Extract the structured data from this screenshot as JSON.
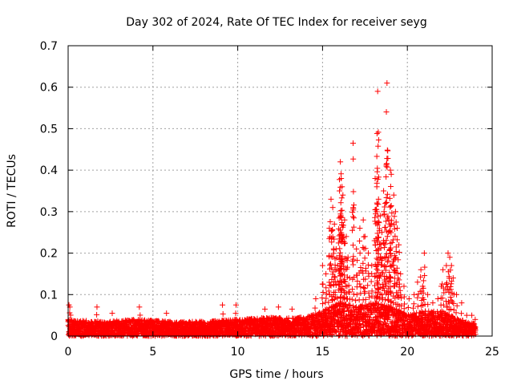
{
  "chart_data": {
    "type": "scatter",
    "title": "Day 302 of 2024, Rate Of TEC Index for receiver seyg",
    "xlabel": "GPS time / hours",
    "ylabel": "ROTI / TECUs",
    "xlim": [
      0,
      25
    ],
    "ylim": [
      0,
      0.7
    ],
    "xticks": [
      0,
      5,
      10,
      15,
      20,
      25
    ],
    "yticks": [
      0,
      0.1,
      0.2,
      0.3,
      0.4,
      0.5,
      0.6,
      0.7
    ],
    "grid": true,
    "marker": "+",
    "color": "#ff0000",
    "series": [
      {
        "name": "ROTI",
        "data_range_hours": [
          0,
          24
        ],
        "background_band": [
          [
            0.0,
            0.04
          ],
          [
            2.0,
            0.035
          ],
          [
            4.0,
            0.04
          ],
          [
            6.0,
            0.035
          ],
          [
            8.0,
            0.035
          ],
          [
            10.0,
            0.04
          ],
          [
            12.0,
            0.045
          ],
          [
            14.0,
            0.045
          ],
          [
            15.0,
            0.06
          ],
          [
            16.0,
            0.08
          ],
          [
            17.0,
            0.07
          ],
          [
            18.0,
            0.08
          ],
          [
            19.0,
            0.07
          ],
          [
            20.0,
            0.05
          ],
          [
            21.0,
            0.06
          ],
          [
            22.0,
            0.06
          ],
          [
            23.0,
            0.04
          ],
          [
            24.0,
            0.03
          ]
        ],
        "points": [
          [
            0.05,
            0.075
          ],
          [
            0.1,
            0.07
          ],
          [
            1.7,
            0.07
          ],
          [
            2.6,
            0.055
          ],
          [
            4.2,
            0.07
          ],
          [
            5.8,
            0.055
          ],
          [
            9.1,
            0.075
          ],
          [
            9.9,
            0.075
          ],
          [
            11.6,
            0.065
          ],
          [
            12.4,
            0.07
          ],
          [
            13.2,
            0.065
          ],
          [
            14.6,
            0.09
          ],
          [
            15.0,
            0.17
          ],
          [
            15.2,
            0.15
          ],
          [
            15.4,
            0.26
          ],
          [
            15.5,
            0.33
          ],
          [
            15.6,
            0.31
          ],
          [
            15.7,
            0.27
          ],
          [
            15.8,
            0.21
          ],
          [
            15.9,
            0.17
          ],
          [
            16.0,
            0.35
          ],
          [
            16.05,
            0.42
          ],
          [
            16.1,
            0.38
          ],
          [
            16.15,
            0.36
          ],
          [
            16.2,
            0.34
          ],
          [
            16.3,
            0.28
          ],
          [
            16.4,
            0.24
          ],
          [
            16.5,
            0.19
          ],
          [
            16.6,
            0.14
          ],
          [
            16.8,
            0.465
          ],
          [
            17.0,
            0.21
          ],
          [
            17.2,
            0.26
          ],
          [
            17.4,
            0.28
          ],
          [
            17.5,
            0.24
          ],
          [
            17.7,
            0.2
          ],
          [
            17.9,
            0.17
          ],
          [
            18.1,
            0.38
          ],
          [
            18.2,
            0.36
          ],
          [
            18.25,
            0.59
          ],
          [
            18.3,
            0.33
          ],
          [
            18.4,
            0.29
          ],
          [
            18.5,
            0.25
          ],
          [
            18.6,
            0.35
          ],
          [
            18.7,
            0.32
          ],
          [
            18.8,
            0.61
          ],
          [
            18.9,
            0.28
          ],
          [
            19.0,
            0.4
          ],
          [
            19.05,
            0.39
          ],
          [
            19.2,
            0.34
          ],
          [
            19.3,
            0.3
          ],
          [
            19.4,
            0.26
          ],
          [
            19.5,
            0.22
          ],
          [
            19.6,
            0.15
          ],
          [
            19.8,
            0.12
          ],
          [
            20.1,
            0.09
          ],
          [
            20.4,
            0.1
          ],
          [
            20.6,
            0.13
          ],
          [
            20.8,
            0.16
          ],
          [
            20.9,
            0.12
          ],
          [
            21.0,
            0.2
          ],
          [
            21.2,
            0.1
          ],
          [
            21.5,
            0.08
          ],
          [
            21.8,
            0.09
          ],
          [
            22.0,
            0.12
          ],
          [
            22.1,
            0.16
          ],
          [
            22.3,
            0.17
          ],
          [
            22.4,
            0.2
          ],
          [
            22.5,
            0.19
          ],
          [
            22.6,
            0.17
          ],
          [
            22.7,
            0.14
          ],
          [
            22.9,
            0.1
          ],
          [
            23.2,
            0.08
          ],
          [
            23.5,
            0.05
          ],
          [
            23.8,
            0.05
          ],
          [
            24.0,
            0.04
          ]
        ]
      }
    ]
  }
}
